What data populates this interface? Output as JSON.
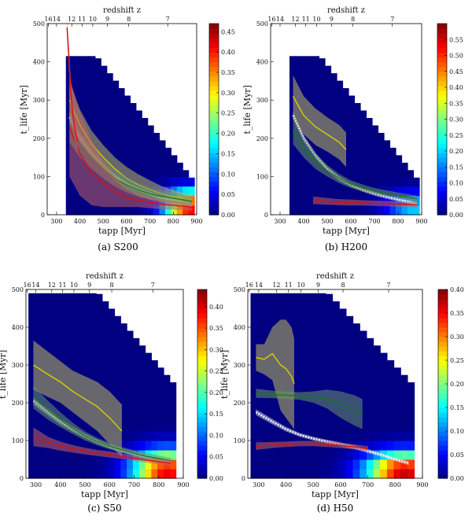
{
  "colors": {
    "background": "#00007f",
    "line_white": "#ffffff",
    "line_yellow": "#d8d000",
    "line_green": "#1a7a1a",
    "line_red": "#d81010"
  },
  "colormap": "jet",
  "chart_data": [
    {
      "type": "heatmap",
      "caption": "(a) S200",
      "xlabel": "tapp [Myr]",
      "ylabel": "t_life [Myr]",
      "top_label": "redshift z",
      "xlim": [
        260,
        900
      ],
      "ylim": [
        0,
        500
      ],
      "xticks": [
        300,
        400,
        500,
        600,
        700,
        800,
        900
      ],
      "xtick_labels": [
        "300",
        "400",
        "500",
        "600",
        "700",
        "800",
        "900"
      ],
      "yticks": [
        0,
        100,
        200,
        300,
        400,
        500
      ],
      "ytick_labels": [
        "0",
        "100",
        "200",
        "300",
        "400",
        "500"
      ],
      "top_tick_positions": [
        265,
        300,
        365,
        409,
        455,
        518,
        609,
        776
      ],
      "top_tick_labels": [
        "16",
        "14",
        "12",
        "11",
        "10",
        "9",
        "8",
        "7"
      ],
      "colorbar": {
        "min": 0,
        "max": 0.47,
        "ticks": [
          0,
          0.05,
          0.1,
          0.15,
          0.2,
          0.25,
          0.3,
          0.35,
          0.4,
          0.45
        ],
        "tick_labels": [
          "0.00",
          "0.05",
          "0.10",
          "0.15",
          "0.20",
          "0.25",
          "0.30",
          "0.35",
          "0.40",
          "0.45"
        ]
      },
      "grid_x0": 340,
      "grid_cols": 22,
      "grid_dx": 25,
      "wall": {
        "t0": 470,
        "t_top": 415
      },
      "hot": {
        "x_peak": 875,
        "y_peak": 20,
        "amp": 0.42,
        "sx": 110,
        "sy": 45
      },
      "series": [
        {
          "name": "white",
          "color": "white",
          "x": [
            355,
            400,
            450,
            500,
            550,
            600,
            650,
            700,
            750,
            800,
            850,
            880
          ],
          "y": [
            255,
            200,
            160,
            127,
            100,
            80,
            66,
            55,
            45,
            38,
            30,
            25
          ],
          "band": [
            12,
            10,
            8,
            7,
            6,
            5,
            5,
            5,
            5,
            5,
            5,
            5
          ]
        },
        {
          "name": "yellow",
          "color": "yellow",
          "x": [
            355,
            400,
            450,
            500,
            550,
            600,
            650,
            700,
            750,
            800,
            850,
            880
          ],
          "y": [
            300,
            235,
            185,
            150,
            120,
            95,
            78,
            65,
            55,
            47,
            40,
            38
          ],
          "band": [
            50,
            40,
            35,
            32,
            30,
            30,
            28,
            25,
            20,
            18,
            15,
            15
          ]
        },
        {
          "name": "green",
          "color": "green",
          "x": [
            355,
            400,
            450,
            500,
            550,
            600,
            650,
            700,
            750,
            800,
            850,
            880
          ],
          "y": [
            230,
            185,
            150,
            120,
            95,
            78,
            65,
            55,
            48,
            43,
            38,
            35
          ],
          "band": [
            40,
            35,
            30,
            25,
            22,
            20,
            18,
            16,
            15,
            14,
            13,
            13
          ]
        },
        {
          "name": "red",
          "color": "red",
          "x": [
            355,
            400,
            450,
            500,
            550,
            600,
            650,
            700,
            750,
            800,
            850,
            880
          ],
          "y": [
            230,
            160,
            110,
            80,
            60,
            45,
            38,
            32,
            28,
            25,
            22,
            20
          ],
          "band": [
            130,
            110,
            85,
            60,
            40,
            25,
            18,
            15,
            13,
            12,
            10,
            10
          ]
        },
        {
          "name": "red-spike",
          "color": "red",
          "x": [
            345,
            352,
            360,
            370,
            380,
            390
          ],
          "y": [
            490,
            420,
            330,
            260,
            220,
            190
          ],
          "band": [
            25,
            35,
            40,
            40,
            35,
            30
          ]
        }
      ]
    },
    {
      "type": "heatmap",
      "caption": "(b) H200",
      "xlabel": "tapp [Myr]",
      "ylabel": "t_life [Myr]",
      "top_label": "redshift z",
      "xlim": [
        260,
        900
      ],
      "ylim": [
        0,
        500
      ],
      "xticks": [
        300,
        400,
        500,
        600,
        700,
        800,
        900
      ],
      "xtick_labels": [
        "300",
        "400",
        "500",
        "600",
        "700",
        "800",
        "900"
      ],
      "yticks": [
        0,
        100,
        200,
        300,
        400,
        500
      ],
      "ytick_labels": [
        "0",
        "100",
        "200",
        "300",
        "400",
        "500"
      ],
      "top_tick_positions": [
        265,
        300,
        365,
        409,
        455,
        518,
        609,
        776
      ],
      "top_tick_labels": [
        "16",
        "14",
        "12",
        "11",
        "10",
        "9",
        "8",
        "7"
      ],
      "colorbar": {
        "min": 0,
        "max": 0.6,
        "ticks": [
          0,
          0.05,
          0.1,
          0.15,
          0.2,
          0.25,
          0.3,
          0.35,
          0.4,
          0.45,
          0.5,
          0.55
        ],
        "tick_labels": [
          "0.00",
          "0.05",
          "0.10",
          "0.15",
          "0.20",
          "0.25",
          "0.30",
          "0.35",
          "0.40",
          "0.45",
          "0.50",
          "0.55"
        ]
      },
      "grid_x0": 340,
      "grid_cols": 22,
      "grid_dx": 25,
      "wall": {
        "t0": 470,
        "t_top": 415
      },
      "hot": {
        "x_peak": 870,
        "y_peak": 20,
        "amp": 0.2,
        "sx": 120,
        "sy": 40
      },
      "series": [
        {
          "name": "white",
          "color": "white",
          "x": [
            355,
            400,
            450,
            500,
            550,
            600,
            650,
            700,
            750,
            800,
            850,
            880
          ],
          "y": [
            260,
            200,
            155,
            120,
            95,
            78,
            65,
            55,
            47,
            40,
            33,
            28
          ],
          "band": [
            10,
            8,
            7,
            6,
            6,
            5,
            5,
            5,
            5,
            5,
            5,
            5
          ]
        },
        {
          "name": "yellow",
          "color": "yellow",
          "x": [
            355,
            400,
            450,
            500,
            550,
            580
          ],
          "y": [
            310,
            260,
            230,
            210,
            190,
            170
          ],
          "band": [
            55,
            50,
            48,
            45,
            45,
            45
          ]
        },
        {
          "name": "green",
          "color": "green",
          "x": [
            355,
            400,
            450,
            500,
            550,
            600,
            650,
            700,
            750,
            800,
            850,
            880
          ],
          "y": [
            220,
            175,
            140,
            115,
            95,
            80,
            70,
            62,
            56,
            50,
            45,
            42
          ],
          "band": [
            35,
            25,
            20,
            15,
            12,
            10,
            9,
            8,
            8,
            8,
            8,
            8
          ]
        },
        {
          "name": "red",
          "color": "red",
          "x": [
            440,
            500,
            550,
            600,
            650,
            700,
            750,
            800,
            850,
            880
          ],
          "y": [
            38,
            35,
            33,
            32,
            31,
            30,
            29,
            28,
            27,
            26
          ],
          "band": [
            10,
            9,
            8,
            8,
            7,
            7,
            7,
            7,
            7,
            7
          ]
        }
      ]
    },
    {
      "type": "heatmap",
      "caption": "(c) S50",
      "xlabel": "tapp [Myr]",
      "ylabel": "t_life [Myr]",
      "top_label": "redshift z",
      "xlim": [
        260,
        900
      ],
      "ylim": [
        0,
        500
      ],
      "xticks": [
        300,
        400,
        500,
        600,
        700,
        800,
        900
      ],
      "xtick_labels": [
        "300",
        "400",
        "500",
        "600",
        "700",
        "800",
        "900"
      ],
      "yticks": [
        0,
        100,
        200,
        300,
        400,
        500
      ],
      "ytick_labels": [
        "0",
        "100",
        "200",
        "300",
        "400",
        "500"
      ],
      "top_tick_positions": [
        265,
        300,
        365,
        409,
        455,
        518,
        609,
        776
      ],
      "top_tick_labels": [
        "16",
        "14",
        "12",
        "11",
        "10",
        "9",
        "8",
        "7"
      ],
      "colorbar": {
        "min": 0,
        "max": 0.44,
        "ticks": [
          0,
          0.05,
          0.1,
          0.15,
          0.2,
          0.25,
          0.3,
          0.35,
          0.4
        ],
        "tick_labels": [
          "0.00",
          "0.05",
          "0.10",
          "0.15",
          "0.20",
          "0.25",
          "0.30",
          "0.35",
          "0.40"
        ]
      },
      "grid_x0": 270,
      "grid_cols": 24,
      "grid_dx": 25,
      "wall": {
        "t0": 555,
        "t_top": 490
      },
      "hot": {
        "x_peak": 835,
        "y_peak": 20,
        "amp": 0.4,
        "sx": 140,
        "sy": 55
      },
      "series": [
        {
          "name": "white",
          "color": "white",
          "x": [
            290,
            350,
            400,
            450,
            500,
            550,
            600,
            650,
            700,
            750,
            800,
            850
          ],
          "y": [
            205,
            175,
            150,
            130,
            112,
            97,
            84,
            74,
            65,
            57,
            50,
            44
          ],
          "band": [
            10,
            9,
            8,
            7,
            6,
            6,
            5,
            5,
            5,
            5,
            5,
            5
          ]
        },
        {
          "name": "yellow",
          "color": "yellow",
          "x": [
            290,
            350,
            400,
            450,
            500,
            550,
            600,
            650
          ],
          "y": [
            300,
            275,
            255,
            230,
            210,
            190,
            160,
            125
          ],
          "band": [
            65,
            60,
            55,
            55,
            60,
            65,
            70,
            70
          ]
        },
        {
          "name": "green",
          "color": "green",
          "x": [
            290,
            350,
            400,
            450,
            500,
            550,
            600,
            650,
            700,
            750,
            800,
            850
          ],
          "y": [
            215,
            180,
            155,
            132,
            112,
            97,
            85,
            75,
            66,
            58,
            52,
            46
          ],
          "band": [
            30,
            25,
            20,
            15,
            12,
            10,
            9,
            8,
            8,
            8,
            8,
            8
          ]
        },
        {
          "name": "red",
          "color": "red",
          "x": [
            290,
            350,
            400,
            450,
            500,
            550,
            600,
            650,
            700,
            750,
            800,
            850
          ],
          "y": [
            110,
            95,
            85,
            78,
            72,
            67,
            63,
            58,
            53,
            48,
            44,
            40
          ],
          "band": [
            25,
            15,
            12,
            10,
            9,
            8,
            8,
            7,
            7,
            7,
            7,
            7
          ]
        }
      ]
    },
    {
      "type": "heatmap",
      "caption": "(d) H50",
      "xlabel": "tapp [Myr]",
      "ylabel": "t_life [Myr]",
      "top_label": "redshift z",
      "xlim": [
        260,
        900
      ],
      "ylim": [
        0,
        500
      ],
      "xticks": [
        300,
        400,
        500,
        600,
        700,
        800,
        900
      ],
      "xtick_labels": [
        "300",
        "400",
        "500",
        "600",
        "700",
        "800",
        "900"
      ],
      "yticks": [
        0,
        100,
        200,
        300,
        400,
        500
      ],
      "ytick_labels": [
        "0",
        "100",
        "200",
        "300",
        "400",
        "500"
      ],
      "top_tick_positions": [
        265,
        300,
        365,
        409,
        455,
        518,
        609,
        776
      ],
      "top_tick_labels": [
        "16",
        "14",
        "12",
        "11",
        "10",
        "9",
        "8",
        "7"
      ],
      "colorbar": {
        "min": 0,
        "max": 0.4,
        "ticks": [
          0,
          0.05,
          0.1,
          0.15,
          0.2,
          0.25,
          0.3,
          0.35,
          0.4
        ],
        "tick_labels": [
          "0.00",
          "0.05",
          "0.10",
          "0.15",
          "0.20",
          "0.25",
          "0.30",
          "0.35",
          "0.40"
        ]
      },
      "grid_x0": 270,
      "grid_cols": 24,
      "grid_dx": 25,
      "wall": {
        "t0": 555,
        "t_top": 490
      },
      "hot": {
        "x_peak": 835,
        "y_peak": 20,
        "amp": 0.38,
        "sx": 140,
        "sy": 50
      },
      "series": [
        {
          "name": "white",
          "color": "white",
          "x": [
            290,
            350,
            400,
            450,
            500,
            550,
            600,
            650,
            700,
            750,
            800,
            850
          ],
          "y": [
            175,
            150,
            130,
            115,
            105,
            97,
            90,
            82,
            72,
            62,
            50,
            40
          ],
          "band": [
            8,
            7,
            6,
            5,
            5,
            5,
            5,
            5,
            5,
            5,
            5,
            5
          ]
        },
        {
          "name": "yellow",
          "color": "yellow",
          "x": [
            290,
            320,
            350,
            380,
            400,
            420,
            430
          ],
          "y": [
            320,
            315,
            330,
            300,
            290,
            270,
            250
          ],
          "band": [
            35,
            40,
            70,
            120,
            130,
            130,
            120
          ]
        },
        {
          "name": "green",
          "color": "green",
          "x": [
            290,
            350,
            400,
            450,
            500,
            550,
            600,
            650,
            680
          ],
          "y": [
            225,
            222,
            220,
            218,
            215,
            210,
            195,
            180,
            170
          ],
          "band": [
            12,
            10,
            10,
            10,
            15,
            25,
            35,
            40,
            40
          ]
        },
        {
          "name": "red",
          "color": "red",
          "x": [
            290,
            350,
            400,
            450,
            500,
            550,
            600,
            650,
            700
          ],
          "y": [
            85,
            88,
            90,
            92,
            92,
            90,
            87,
            83,
            78
          ],
          "band": [
            10,
            8,
            7,
            7,
            7,
            7,
            7,
            7,
            7
          ]
        }
      ]
    }
  ]
}
